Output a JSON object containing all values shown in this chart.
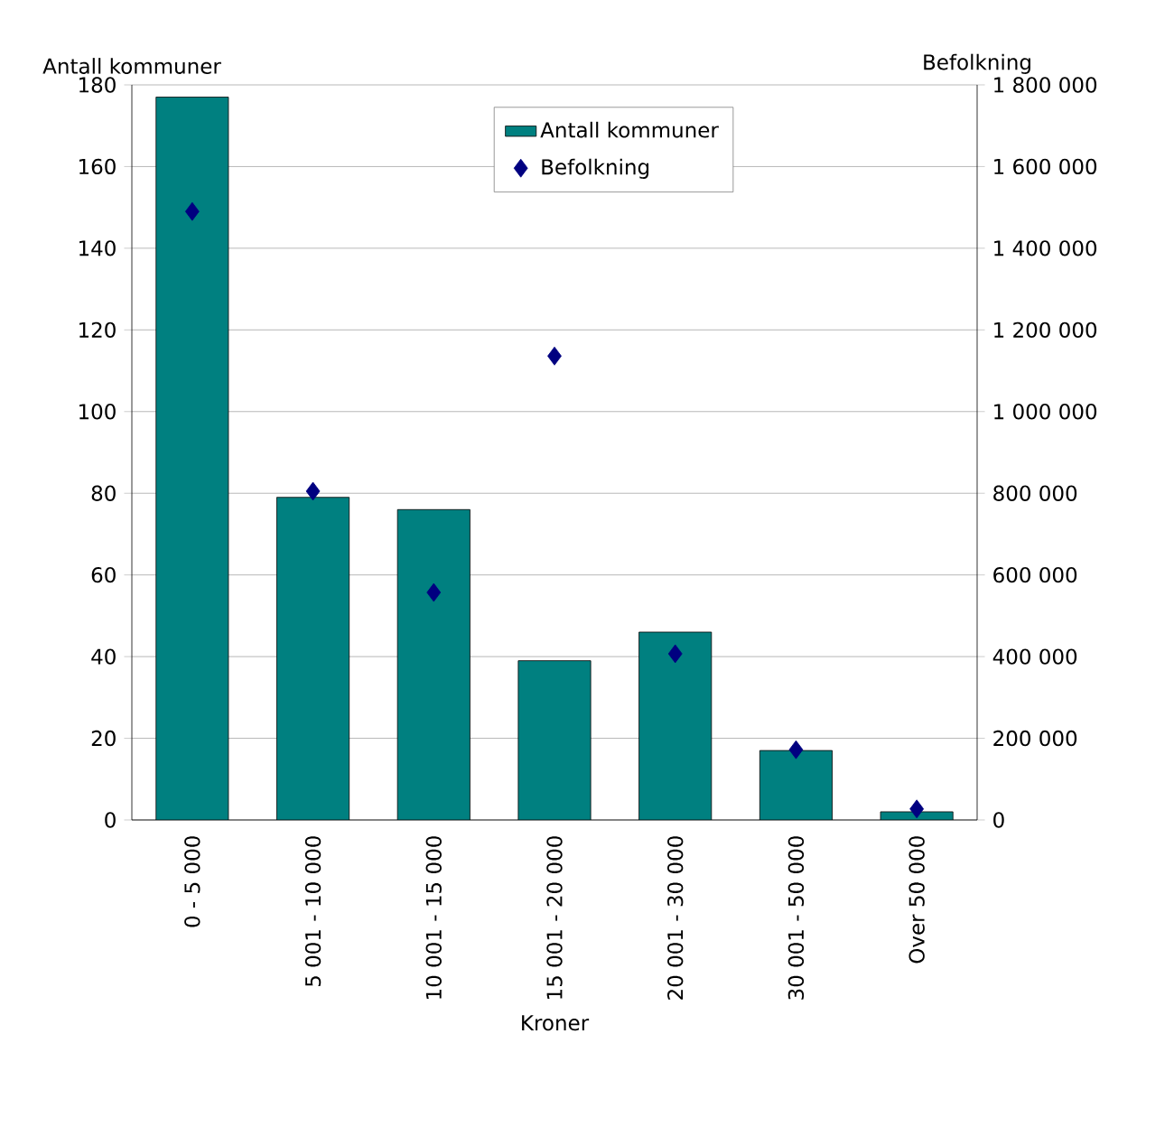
{
  "chart_data": {
    "type": "bar",
    "xlabel": "Kroner",
    "ylabel": "Antall kommuner",
    "y2label": "Befolkning",
    "categories": [
      "0 - 5 000",
      "5 001 - 10 000",
      "10 001 - 15 000",
      "15 001 - 20 000",
      "20 001 - 30 000",
      "30 001 - 50 000",
      "Over 50 000"
    ],
    "series": [
      {
        "name": "Antall kommuner",
        "color": "#008080",
        "values": [
          177,
          79,
          76,
          39,
          46,
          17,
          2
        ]
      },
      {
        "name": "Befolkning",
        "type": "scatter",
        "axis": "y2",
        "color": "#000080",
        "values": [
          1490000,
          805000,
          557000,
          1136000,
          407000,
          172000,
          27000
        ]
      }
    ],
    "ylim": [
      0,
      180
    ],
    "yticks": [
      0,
      20,
      40,
      60,
      80,
      100,
      120,
      140,
      160,
      180
    ],
    "y2lim": [
      0,
      1800000
    ],
    "y2ticks": [
      0,
      {
        "value": 200000,
        "label": "200 000"
      },
      {
        "value": 400000,
        "label": "400 000"
      },
      {
        "value": 600000,
        "label": "600 000"
      },
      {
        "value": 800000,
        "label": "800 000"
      },
      {
        "value": 1000000,
        "label": "1 000 000"
      },
      {
        "value": 1200000,
        "label": "1 200 000"
      },
      {
        "value": 1400000,
        "label": "1 400 000"
      },
      {
        "value": 1600000,
        "label": "1 600 000"
      },
      {
        "value": 1800000,
        "label": "1 800 000"
      }
    ],
    "grid": "y",
    "legend": "top",
    "marker": "diamond"
  }
}
